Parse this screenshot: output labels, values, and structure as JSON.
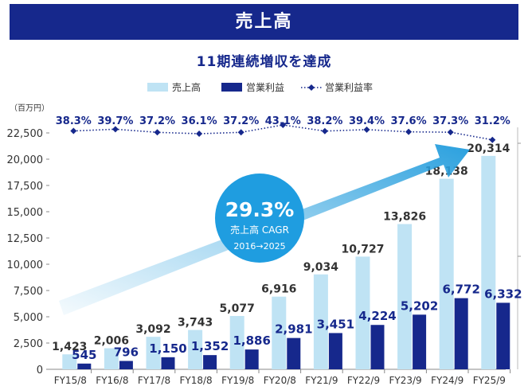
{
  "header": {
    "title": "売上高",
    "subtitle": "11期連続増収を達成"
  },
  "colors": {
    "banner": "#16288c",
    "sales": "#bfe3f4",
    "profit": "#16288c",
    "margin": "#16288c",
    "circle": "#1f9de0",
    "arrow": "#2aa0de"
  },
  "cagr": {
    "value": "29.3%",
    "label": "売上高 CAGR",
    "period": "2016→2025"
  },
  "chart_data": {
    "type": "bar",
    "unit_label": "（百万円）",
    "categories": [
      "FY15/8",
      "FY16/8",
      "FY17/8",
      "FY18/8",
      "FY19/8",
      "FY20/8",
      "FY21/9",
      "FY22/9",
      "FY23/9",
      "FY24/9",
      "FY25/9"
    ],
    "ylim": [
      0,
      22500
    ],
    "yticks": [
      0,
      2500,
      5000,
      7500,
      10000,
      12500,
      15000,
      17500,
      20000,
      22500
    ],
    "ytick_labels": [
      "0",
      "2,500",
      "5,000",
      "7,500",
      "10,000",
      "12,500",
      "15,000",
      "17,500",
      "20,000",
      "22,500"
    ],
    "series": [
      {
        "name": "売上高",
        "values": [
          1423,
          2006,
          3092,
          3743,
          5077,
          6916,
          9034,
          10727,
          13826,
          18138,
          20314
        ],
        "labels": [
          "1,423",
          "2,006",
          "3,092",
          "3,743",
          "5,077",
          "6,916",
          "9,034",
          "10,727",
          "13,826",
          "18,138",
          "20,314"
        ]
      },
      {
        "name": "営業利益",
        "values": [
          545,
          796,
          1150,
          1352,
          1886,
          2981,
          3451,
          4224,
          5202,
          6772,
          6332
        ],
        "labels": [
          "545",
          "796",
          "1,150",
          "1,352",
          "1,886",
          "2,981",
          "3,451",
          "4,224",
          "5,202",
          "6,772",
          "6,332"
        ]
      },
      {
        "name": "営業利益率",
        "values": [
          38.3,
          39.7,
          37.2,
          36.1,
          37.2,
          43.1,
          38.2,
          39.4,
          37.6,
          37.3,
          31.2
        ],
        "labels": [
          "38.3%",
          "39.7%",
          "37.2%",
          "36.1%",
          "37.2%",
          "43.1%",
          "38.2%",
          "39.4%",
          "37.6%",
          "37.3%",
          "31.2%"
        ]
      }
    ]
  }
}
